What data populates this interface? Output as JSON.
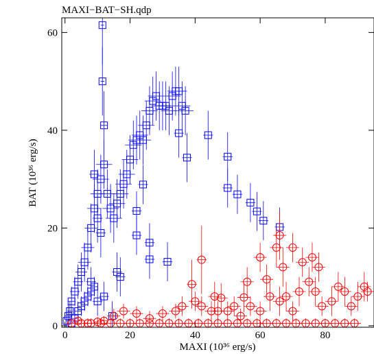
{
  "chart_data": {
    "type": "scatter",
    "title": "MAXI−BAT−SH.qdp",
    "xlabel": "MAXI (10³⁶ erg/s)",
    "ylabel": "BAT (10³⁶ erg/s)",
    "xlim": [
      -1,
      95
    ],
    "ylim": [
      -0.3,
      63
    ],
    "xticks": [
      0,
      20,
      40,
      60,
      80
    ],
    "yticks": [
      0,
      20,
      40,
      60
    ],
    "series": [
      {
        "marker": "square",
        "color": "#0000ff",
        "points": [
          [
            1,
            2,
            1.2,
            2.5
          ],
          [
            2,
            5,
            1.2,
            3
          ],
          [
            3,
            7,
            1.5,
            3
          ],
          [
            4,
            9,
            1.5,
            3.5
          ],
          [
            5,
            11,
            1.8,
            4
          ],
          [
            6,
            13,
            2,
            4
          ],
          [
            7,
            16,
            2,
            4.5
          ],
          [
            8,
            20,
            2,
            5
          ],
          [
            9,
            24,
            2.2,
            5
          ],
          [
            10,
            27,
            2.2,
            5
          ],
          [
            11,
            30,
            2.5,
            5
          ],
          [
            12,
            33,
            2.5,
            5
          ],
          [
            13,
            27,
            2.5,
            5
          ],
          [
            14,
            24,
            2.5,
            5
          ],
          [
            15,
            22,
            2.5,
            5
          ],
          [
            16,
            25,
            2.5,
            5
          ],
          [
            17,
            27,
            2.5,
            5
          ],
          [
            18,
            29,
            2.5,
            5
          ],
          [
            19,
            31,
            2.5,
            5
          ],
          [
            20,
            34,
            2.5,
            5
          ],
          [
            21,
            37,
            2.5,
            5
          ],
          [
            22,
            38,
            2.5,
            5
          ],
          [
            23,
            39,
            2.5,
            5
          ],
          [
            24,
            38,
            2.5,
            5
          ],
          [
            25,
            41,
            2.5,
            5
          ],
          [
            26,
            44,
            2.5,
            5
          ],
          [
            27,
            46,
            2.5,
            5
          ],
          [
            28,
            47,
            2.5,
            5
          ],
          [
            29,
            45,
            2.5,
            5
          ],
          [
            30,
            45,
            2.5,
            5
          ],
          [
            31,
            45,
            2.5,
            5
          ],
          [
            32,
            44,
            2.5,
            5
          ],
          [
            33,
            47,
            2.5,
            5
          ],
          [
            34,
            48,
            2.5,
            5
          ],
          [
            35,
            48,
            2.5,
            5
          ],
          [
            36,
            45,
            2.5,
            5
          ],
          [
            37,
            44,
            2.5,
            5
          ],
          [
            11.5,
            61.5,
            0.5,
            8
          ],
          [
            11.5,
            50,
            0.6,
            7
          ],
          [
            12,
            41,
            1,
            7
          ],
          [
            9,
            31,
            1.5,
            5
          ],
          [
            10,
            22,
            1.5,
            5
          ],
          [
            11,
            19,
            1.5,
            5
          ],
          [
            22,
            23.5,
            1.5,
            4
          ],
          [
            24,
            28.9,
            1.5,
            4
          ],
          [
            26,
            17,
            1.5,
            4
          ],
          [
            26,
            13.6,
            1.5,
            4
          ],
          [
            31.5,
            13.1,
            1.5,
            4
          ],
          [
            22,
            18.5,
            1.5,
            4
          ],
          [
            16,
            11,
            1.5,
            4
          ],
          [
            17,
            10,
            1.5,
            4
          ],
          [
            14.5,
            2,
            1.5,
            3
          ],
          [
            10,
            5,
            1.5,
            3
          ],
          [
            12,
            6,
            1.5,
            3
          ],
          [
            8,
            9,
            1.5,
            3
          ],
          [
            35,
            39.4,
            1.5,
            5
          ],
          [
            37.5,
            34.4,
            1.5,
            5
          ],
          [
            44,
            39,
            1.5,
            5
          ],
          [
            50,
            34.6,
            1.5,
            5
          ],
          [
            50,
            28.2,
            1.5,
            4
          ],
          [
            53,
            26.9,
            1.5,
            4
          ],
          [
            57,
            25.2,
            1.5,
            4
          ],
          [
            59,
            23.4,
            1.5,
            4
          ],
          [
            61,
            21.5,
            1.5,
            4
          ],
          [
            66,
            20.2,
            1.5,
            4
          ],
          [
            2,
            0.5,
            1,
            1.5
          ],
          [
            3,
            1.5,
            1,
            2
          ],
          [
            4,
            3,
            1,
            2
          ],
          [
            5,
            4,
            1,
            2
          ],
          [
            6,
            5,
            1,
            2
          ],
          [
            7,
            6,
            1,
            2
          ],
          [
            8,
            7,
            1,
            2
          ],
          [
            9,
            8,
            1,
            2
          ],
          [
            0.5,
            1,
            0.5,
            1.5
          ],
          [
            1.5,
            3,
            0.8,
            2
          ]
        ]
      },
      {
        "marker": "circle",
        "color": "#ff0000",
        "points": [
          [
            2,
            0.5,
            1.5,
            1
          ],
          [
            5,
            0.5,
            2,
            1
          ],
          [
            8,
            0.5,
            2,
            1
          ],
          [
            11,
            0.5,
            2,
            1
          ],
          [
            14,
            0.5,
            2,
            1
          ],
          [
            17,
            0.5,
            2,
            1
          ],
          [
            20,
            0.5,
            2,
            1
          ],
          [
            23,
            0.5,
            2,
            1
          ],
          [
            26,
            0.5,
            2,
            1
          ],
          [
            29,
            0.5,
            2,
            1
          ],
          [
            32,
            0.5,
            2,
            1
          ],
          [
            35,
            0.5,
            2,
            1
          ],
          [
            38,
            0.5,
            2,
            1
          ],
          [
            41,
            0.5,
            2,
            1
          ],
          [
            44,
            0.5,
            2,
            1
          ],
          [
            47,
            0.5,
            2,
            1
          ],
          [
            50,
            0.5,
            2,
            1
          ],
          [
            53,
            0.5,
            2,
            1
          ],
          [
            56,
            0.5,
            2,
            1
          ],
          [
            59,
            0.5,
            2,
            1
          ],
          [
            62,
            0.5,
            2,
            1
          ],
          [
            65,
            0.5,
            2,
            1
          ],
          [
            68,
            0.5,
            2,
            1
          ],
          [
            71,
            0.5,
            2,
            1
          ],
          [
            74,
            0.5,
            2,
            1
          ],
          [
            77,
            0.5,
            2,
            1
          ],
          [
            80,
            0.5,
            2,
            1
          ],
          [
            83,
            0.5,
            2,
            1
          ],
          [
            86,
            0.5,
            2,
            1
          ],
          [
            89,
            0.5,
            2,
            1
          ],
          [
            15,
            2,
            2,
            1.5
          ],
          [
            18,
            3,
            2,
            1.5
          ],
          [
            22,
            2.5,
            2,
            1.5
          ],
          [
            26,
            1.5,
            2,
            1.5
          ],
          [
            30,
            2.5,
            2,
            1.5
          ],
          [
            34,
            3,
            2,
            1.5
          ],
          [
            36,
            4,
            2,
            2
          ],
          [
            40,
            5,
            2,
            2
          ],
          [
            42,
            4,
            2,
            2
          ],
          [
            45,
            3,
            2,
            2
          ],
          [
            47,
            3,
            2,
            2
          ],
          [
            50,
            3,
            2,
            2
          ],
          [
            52,
            4,
            2,
            2
          ],
          [
            54,
            2,
            2,
            1.5
          ],
          [
            57,
            4,
            2,
            2
          ],
          [
            60,
            3,
            2,
            2
          ],
          [
            63,
            6,
            2,
            3
          ],
          [
            66,
            5,
            2,
            3
          ],
          [
            68,
            6,
            2,
            3
          ],
          [
            70,
            3,
            2,
            2
          ],
          [
            72,
            7,
            2,
            3
          ],
          [
            75,
            9,
            2,
            3
          ],
          [
            77,
            7,
            2,
            3
          ],
          [
            79,
            4,
            2,
            2
          ],
          [
            82,
            5,
            2,
            3
          ],
          [
            84,
            8,
            2,
            3
          ],
          [
            86,
            7,
            2,
            3
          ],
          [
            88,
            4,
            2,
            2
          ],
          [
            90,
            6,
            2,
            3
          ],
          [
            92,
            8,
            2,
            3
          ],
          [
            93,
            7,
            2,
            2
          ],
          [
            46,
            6,
            2,
            3
          ],
          [
            48,
            5.7,
            2,
            3
          ],
          [
            55,
            5.8,
            2,
            3
          ],
          [
            65,
            16,
            2,
            4
          ],
          [
            66,
            18.5,
            2,
            5
          ],
          [
            67,
            12,
            2,
            4
          ],
          [
            70,
            16,
            2,
            3
          ],
          [
            73,
            13,
            2,
            3
          ],
          [
            76,
            14,
            2,
            3
          ],
          [
            78,
            12,
            2,
            3
          ],
          [
            60,
            14,
            2,
            3
          ],
          [
            56,
            9,
            2,
            3
          ],
          [
            62,
            9.5,
            2,
            3
          ],
          [
            42,
            13.5,
            1.5,
            7
          ],
          [
            39,
            8.5,
            1.5,
            5
          ],
          [
            12,
            1,
            1,
            1
          ],
          [
            10,
            0.8,
            1,
            1
          ],
          [
            7,
            0.5,
            1,
            1
          ],
          [
            4,
            1,
            1,
            1
          ]
        ]
      }
    ]
  }
}
